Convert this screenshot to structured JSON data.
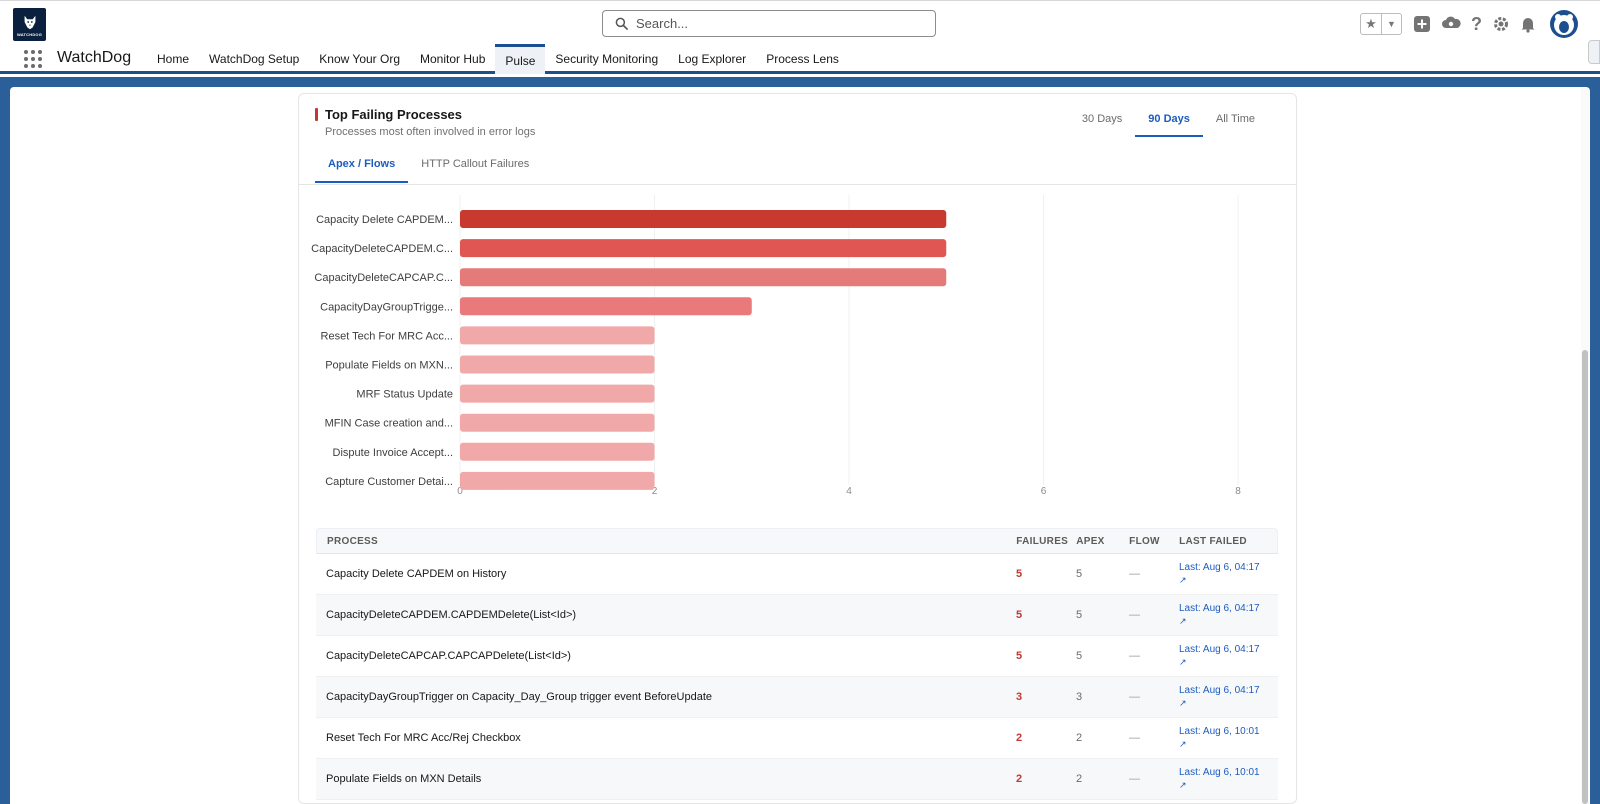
{
  "global_header": {
    "logo_text": "WATCHDOG",
    "search_placeholder": "Search...",
    "icons": [
      "star-icon",
      "chevron-down-icon",
      "plus-icon",
      "cloud-icon",
      "help-icon",
      "gear-icon",
      "bell-icon",
      "avatar-icon"
    ]
  },
  "app_nav": {
    "app_name": "WatchDog",
    "tabs": [
      {
        "label": "Home",
        "active": false
      },
      {
        "label": "WatchDog Setup",
        "active": false
      },
      {
        "label": "Know Your Org",
        "active": false
      },
      {
        "label": "Monitor Hub",
        "active": false
      },
      {
        "label": "Pulse",
        "active": true
      },
      {
        "label": "Security Monitoring",
        "active": false
      },
      {
        "label": "Log Explorer",
        "active": false
      },
      {
        "label": "Process Lens",
        "active": false
      }
    ]
  },
  "card": {
    "title": "Top Failing Processes",
    "subtitle": "Processes most often involved in error logs",
    "range_tabs": [
      {
        "label": "30 Days",
        "active": false
      },
      {
        "label": "90 Days",
        "active": true
      },
      {
        "label": "All Time",
        "active": false
      }
    ],
    "sub_tabs": [
      {
        "label": "Apex / Flows",
        "active": true
      },
      {
        "label": "HTTP Callout Failures",
        "active": false
      }
    ]
  },
  "chart_data": {
    "type": "bar",
    "orientation": "horizontal",
    "categories": [
      "Capacity Delete CAPDEM...",
      "CapacityDeleteCAPDEM.C...",
      "CapacityDeleteCAPCAP.C...",
      "CapacityDayGroupTrigge...",
      "Reset Tech For MRC Acc...",
      "Populate Fields on MXN...",
      "MRF Status Update",
      "MFIN Case creation and...",
      "Dispute Invoice Accept...",
      "Capture Customer Detai..."
    ],
    "values": [
      5,
      5,
      5,
      3,
      2,
      2,
      2,
      2,
      2,
      2
    ],
    "x_ticks": [
      0,
      2,
      4,
      6,
      8
    ],
    "xlim": [
      0,
      8
    ],
    "grid": true,
    "bar_colors": [
      "#c8392f",
      "#e05652",
      "#e57b78",
      "#e9797a",
      "#f0a8a8",
      "#f0a8a8",
      "#f0a8a8",
      "#f0a8a8",
      "#f0a8a8",
      "#f0a8a8"
    ]
  },
  "table": {
    "headers": {
      "process": "PROCESS",
      "failures": "FAILURES",
      "apex": "APEX",
      "flow": "FLOW",
      "last_failed": "LAST FAILED"
    },
    "rows": [
      {
        "process": "Capacity Delete CAPDEM on History",
        "failures": "5",
        "apex": "5",
        "flow": "—",
        "last_failed": "Last: Aug 6, 04:17",
        "arrow": "↗"
      },
      {
        "process": "CapacityDeleteCAPDEM.CAPDEMDelete(List<Id>)",
        "failures": "5",
        "apex": "5",
        "flow": "—",
        "last_failed": "Last: Aug 6, 04:17",
        "arrow": "↗"
      },
      {
        "process": "CapacityDeleteCAPCAP.CAPCAPDelete(List<Id>)",
        "failures": "5",
        "apex": "5",
        "flow": "—",
        "last_failed": "Last: Aug 6, 04:17",
        "arrow": "↗"
      },
      {
        "process": "CapacityDayGroupTrigger on Capacity_Day_Group trigger event BeforeUpdate",
        "failures": "3",
        "apex": "3",
        "flow": "—",
        "last_failed": "Last: Aug 6, 04:17",
        "arrow": "↗"
      },
      {
        "process": "Reset Tech For MRC Acc/Rej Checkbox",
        "failures": "2",
        "apex": "2",
        "flow": "—",
        "last_failed": "Last: Aug 6, 10:01",
        "arrow": "↗"
      },
      {
        "process": "Populate Fields on MXN Details",
        "failures": "2",
        "apex": "2",
        "flow": "—",
        "last_failed": "Last: Aug 6, 10:01",
        "arrow": "↗"
      }
    ]
  },
  "colors": {
    "brand_navy": "#1b4f8f",
    "accent_blue": "#1b5cc0",
    "error_red": "#c23934"
  }
}
